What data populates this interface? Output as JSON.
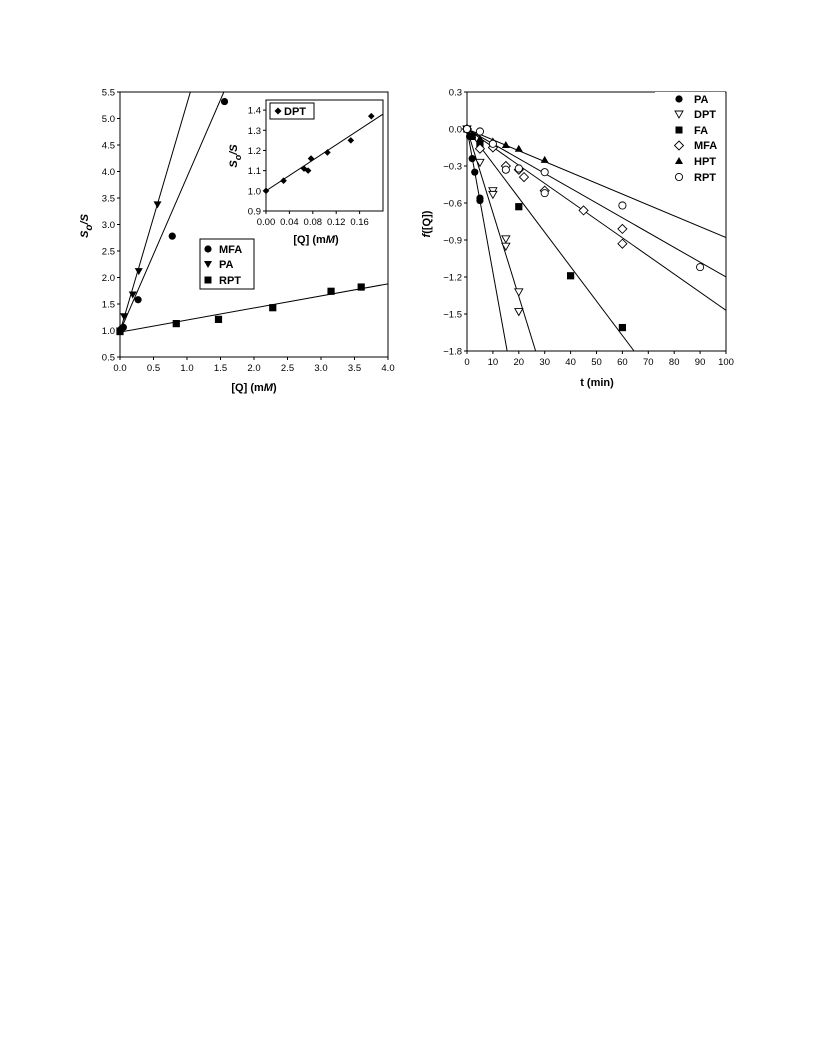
{
  "chart_data": [
    {
      "type": "scatter",
      "xlabel": "[Q] (mM)",
      "ylabel": "So/S",
      "xlim": [
        0,
        4.0
      ],
      "ylim": [
        0.5,
        5.5
      ],
      "xticks": [
        "0.0",
        "0.5",
        "1.0",
        "1.5",
        "2.0",
        "2.5",
        "3.0",
        "3.5",
        "4.0"
      ],
      "yticks": [
        "0.5",
        "1.0",
        "1.5",
        "2.0",
        "2.5",
        "3.0",
        "3.5",
        "4.0",
        "4.5",
        "5.0",
        "5.5"
      ],
      "legend": [
        "MFA",
        "PA",
        "RPT"
      ],
      "legend_position": "center-right",
      "series": [
        {
          "name": "MFA",
          "marker": "circle",
          "x": [
            0,
            0.02,
            0.05,
            0.27,
            0.78,
            1.56
          ],
          "y": [
            1.0,
            1.03,
            1.06,
            1.58,
            2.78,
            5.32
          ],
          "fit": [
            [
              0,
              0.98
            ],
            [
              1.55,
              5.5
            ]
          ]
        },
        {
          "name": "PA",
          "marker": "triangle-down",
          "x": [
            0,
            0.06,
            0.19,
            0.28,
            0.56
          ],
          "y": [
            1.0,
            1.27,
            1.68,
            2.12,
            3.38
          ],
          "fit": [
            [
              0,
              0.98
            ],
            [
              1.05,
              5.5
            ]
          ]
        },
        {
          "name": "RPT",
          "marker": "square",
          "x": [
            0,
            0.84,
            1.47,
            2.28,
            3.15,
            3.6
          ],
          "y": [
            0.98,
            1.13,
            1.21,
            1.43,
            1.74,
            1.82
          ],
          "fit": [
            [
              0,
              0.97
            ],
            [
              4.0,
              1.88
            ]
          ]
        }
      ]
    },
    {
      "type": "scatter",
      "inset": true,
      "xlabel": "[Q] (mM)",
      "ylabel": "So/S",
      "xlim": [
        0,
        0.2
      ],
      "ylim": [
        0.9,
        1.45
      ],
      "xticks": [
        "0.00",
        "0.04",
        "0.08",
        "0.12",
        "0.16"
      ],
      "yticks": [
        "0.9",
        "1.0",
        "1.1",
        "1.2",
        "1.3",
        "1.4"
      ],
      "legend": [
        "DPT"
      ],
      "series": [
        {
          "name": "DPT",
          "marker": "diamond",
          "x": [
            0,
            0.03,
            0.065,
            0.072,
            0.077,
            0.105,
            0.145,
            0.18
          ],
          "y": [
            1.0,
            1.05,
            1.11,
            1.1,
            1.16,
            1.19,
            1.25,
            1.37
          ],
          "fit": [
            [
              0,
              1.0
            ],
            [
              0.2,
              1.38
            ]
          ]
        }
      ]
    },
    {
      "type": "scatter",
      "xlabel": "t (min)",
      "ylabel": "f([Q])",
      "xlim": [
        0,
        100
      ],
      "ylim": [
        -1.8,
        0.3
      ],
      "xticks": [
        "0",
        "10",
        "20",
        "30",
        "40",
        "50",
        "60",
        "70",
        "80",
        "90",
        "100"
      ],
      "yticks": [
        "0.3",
        "0.0",
        "−0.3",
        "−0.6",
        "−0.9",
        "−1.2",
        "−1.5",
        "−1.8"
      ],
      "legend": [
        "PA",
        "DPT",
        "FA",
        "MFA",
        "HPT",
        "RPT"
      ],
      "legend_position": "top-right",
      "series": [
        {
          "name": "PA",
          "marker": "circle",
          "x": [
            0,
            1,
            2,
            3,
            5,
            5
          ],
          "y": [
            0.0,
            -0.06,
            -0.24,
            -0.35,
            -0.56,
            -0.58
          ],
          "fit": [
            [
              0,
              0.0
            ],
            [
              15.5,
              -1.8
            ]
          ]
        },
        {
          "name": "DPT",
          "marker": "triangle-down-open",
          "x": [
            0,
            5,
            10,
            10,
            15,
            15,
            20,
            20
          ],
          "y": [
            0.0,
            -0.27,
            -0.5,
            -0.53,
            -0.89,
            -0.95,
            -1.32,
            -1.48
          ],
          "fit": [
            [
              0,
              0.0
            ],
            [
              26.5,
              -1.8
            ]
          ]
        },
        {
          "name": "FA",
          "marker": "square",
          "x": [
            0,
            2,
            5,
            20,
            40,
            60
          ],
          "y": [
            0.0,
            -0.06,
            -0.13,
            -0.63,
            -1.19,
            -1.61
          ],
          "fit": [
            [
              0,
              0.0
            ],
            [
              64.5,
              -1.8
            ]
          ]
        },
        {
          "name": "MFA",
          "marker": "diamond-open",
          "x": [
            0,
            5,
            10,
            15,
            20,
            22,
            30,
            45,
            60,
            60
          ],
          "y": [
            0.0,
            -0.16,
            -0.15,
            -0.3,
            -0.33,
            -0.39,
            -0.5,
            -0.66,
            -0.81,
            -0.93
          ],
          "fit": [
            [
              0,
              0.0
            ],
            [
              100,
              -1.47
            ]
          ]
        },
        {
          "name": "HPT",
          "marker": "triangle-up",
          "x": [
            0,
            2,
            5,
            10,
            15,
            20,
            30
          ],
          "y": [
            0.0,
            -0.05,
            -0.08,
            -0.1,
            -0.13,
            -0.16,
            -0.25
          ],
          "fit": [
            [
              0,
              0.0
            ],
            [
              100,
              -0.88
            ]
          ]
        },
        {
          "name": "RPT",
          "marker": "circle-open",
          "x": [
            0,
            5,
            10,
            15,
            20,
            30,
            30,
            60,
            90
          ],
          "y": [
            0.0,
            -0.02,
            -0.12,
            -0.33,
            -0.32,
            -0.35,
            -0.52,
            -0.62,
            -1.12
          ],
          "fit": [
            [
              0,
              0.0
            ],
            [
              100,
              -1.2
            ]
          ]
        }
      ]
    }
  ]
}
